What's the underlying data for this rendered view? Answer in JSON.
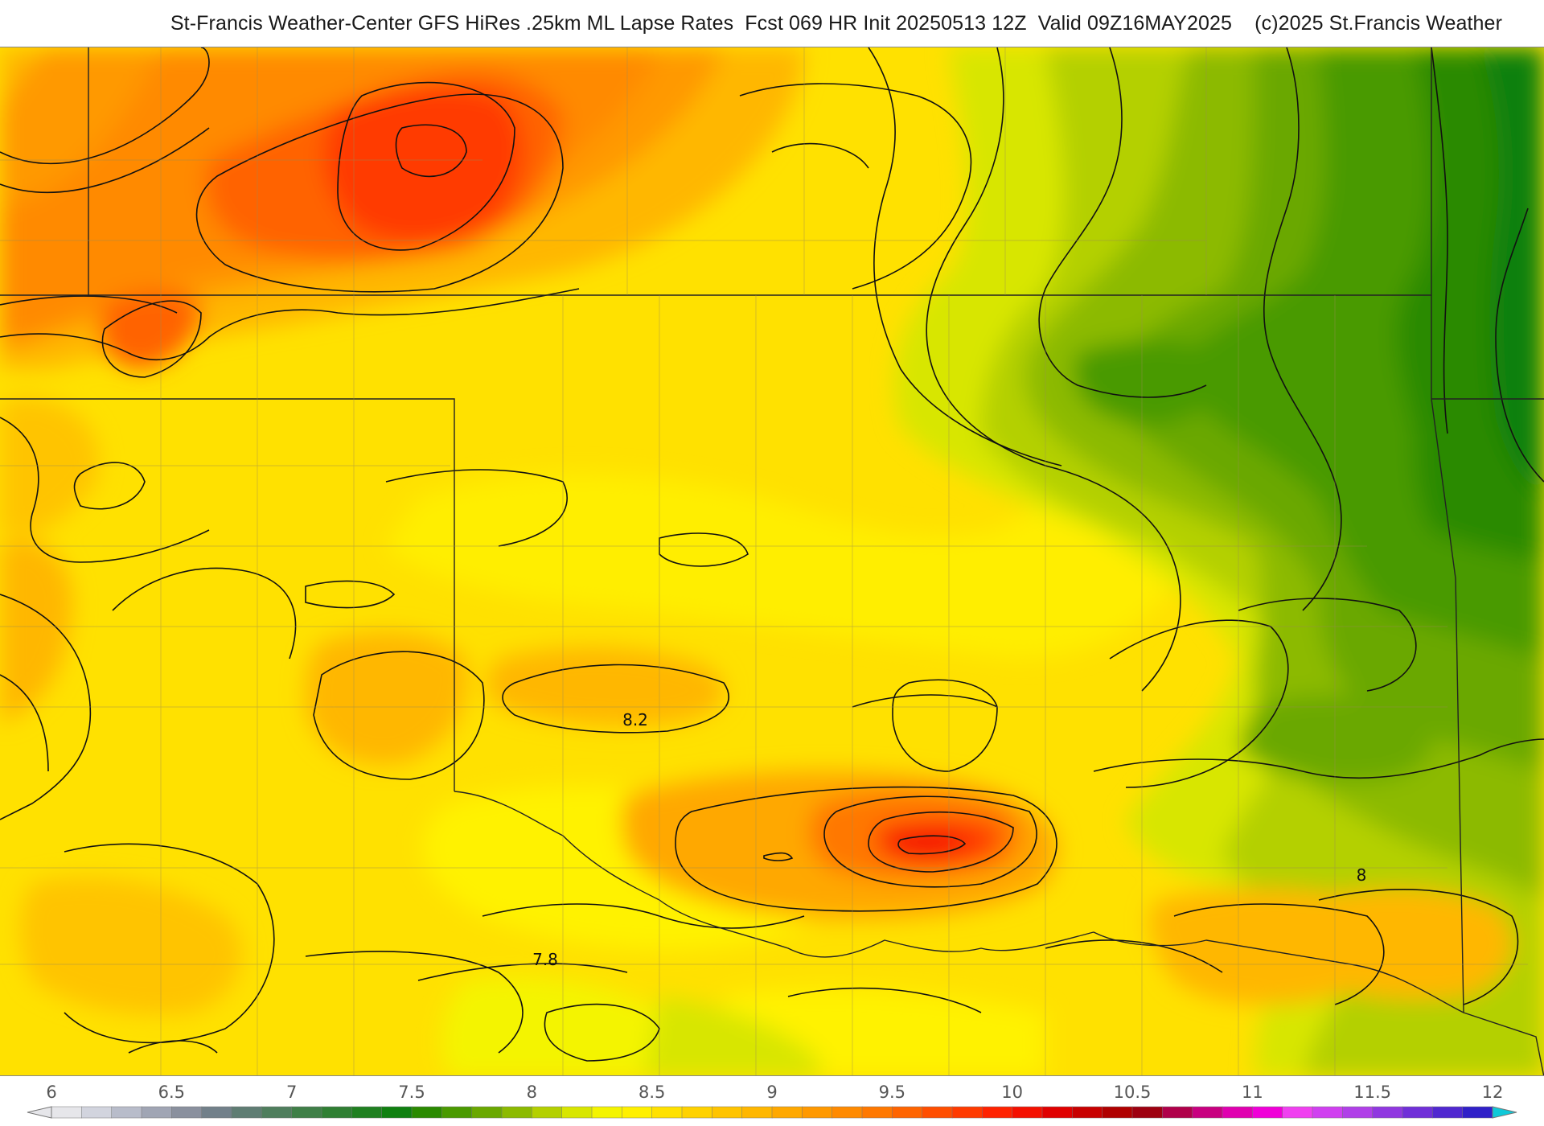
{
  "header": {
    "title": "St-Francis Weather-Center GFS HiRes .25km ML Lapse Rates  Fcst 069 HR Init 20250513 12Z  Valid 09Z16MAY2025    (c)2025 St.Francis Weather"
  },
  "map": {
    "contour_labels": [
      {
        "text": "8.2",
        "value": 8.2
      },
      {
        "text": "7.8",
        "value": 7.8
      },
      {
        "text": "8",
        "value": 8.0
      }
    ]
  },
  "colorbar": {
    "min": 6,
    "max": 12,
    "step": 0.125,
    "ticks": [
      "6",
      "6.5",
      "7",
      "7.5",
      "8",
      "8.5",
      "9",
      "9.5",
      "10",
      "10.5",
      "11",
      "11.5",
      "12"
    ],
    "colors": [
      "#e6e6ea",
      "#d2d4de",
      "#b8bcca",
      "#a0a5b4",
      "#8a909e",
      "#72808a",
      "#5f7d73",
      "#4f7e5d",
      "#3f7f47",
      "#2f7f33",
      "#1f8020",
      "#0f8010",
      "#2a8a00",
      "#4a9a00",
      "#6aa800",
      "#8cba00",
      "#b4d000",
      "#d8e600",
      "#f4f400",
      "#fff000",
      "#ffe100",
      "#ffd200",
      "#ffc400",
      "#ffb700",
      "#ffa800",
      "#ff9900",
      "#ff8a00",
      "#ff7800",
      "#ff6400",
      "#ff4e00",
      "#ff3a00",
      "#ff2200",
      "#f41000",
      "#e00000",
      "#c80000",
      "#b00000",
      "#9e0010",
      "#b0004a",
      "#c80080",
      "#e000b0",
      "#f000d8",
      "#f040f0",
      "#d040f0",
      "#b040e8",
      "#9038e0",
      "#7030d8",
      "#5028d0",
      "#3020c8"
    ]
  }
}
